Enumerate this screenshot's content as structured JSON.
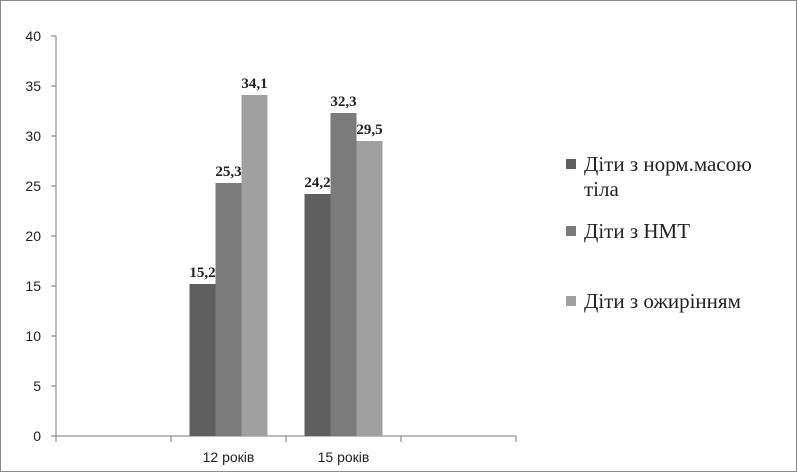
{
  "chart_data": {
    "type": "bar",
    "title": "",
    "xlabel": "",
    "ylabel": "",
    "categories": [
      "12 років",
      "15 років"
    ],
    "ylim": [
      0,
      40
    ],
    "yticks": [
      0,
      5,
      10,
      15,
      20,
      25,
      30,
      35,
      40
    ],
    "ytick_labels": [
      "0",
      "5",
      "10",
      "15",
      "20",
      "25",
      "30",
      "35",
      "40"
    ],
    "grid": false,
    "legend_position": "right",
    "series": [
      {
        "name": "Діти з норм.масою тіла",
        "legend_lines": [
          "Діти з норм.масою",
          "тіла"
        ],
        "color": "#5f5f5f",
        "values": [
          15.2,
          24.2
        ],
        "labels": [
          "15,2",
          "24,2"
        ]
      },
      {
        "name": "Діти з НМТ",
        "legend_lines": [
          "Діти з НМТ"
        ],
        "color": "#7b7b7b",
        "values": [
          25.3,
          32.3
        ],
        "labels": [
          "25,3",
          "32,3"
        ]
      },
      {
        "name": "Діти з ожирінням",
        "legend_lines": [
          "Діти з ожирінням"
        ],
        "color": "#a0a0a0",
        "values": [
          34.1,
          29.5
        ],
        "labels": [
          "34,1",
          "29,5"
        ]
      }
    ]
  }
}
